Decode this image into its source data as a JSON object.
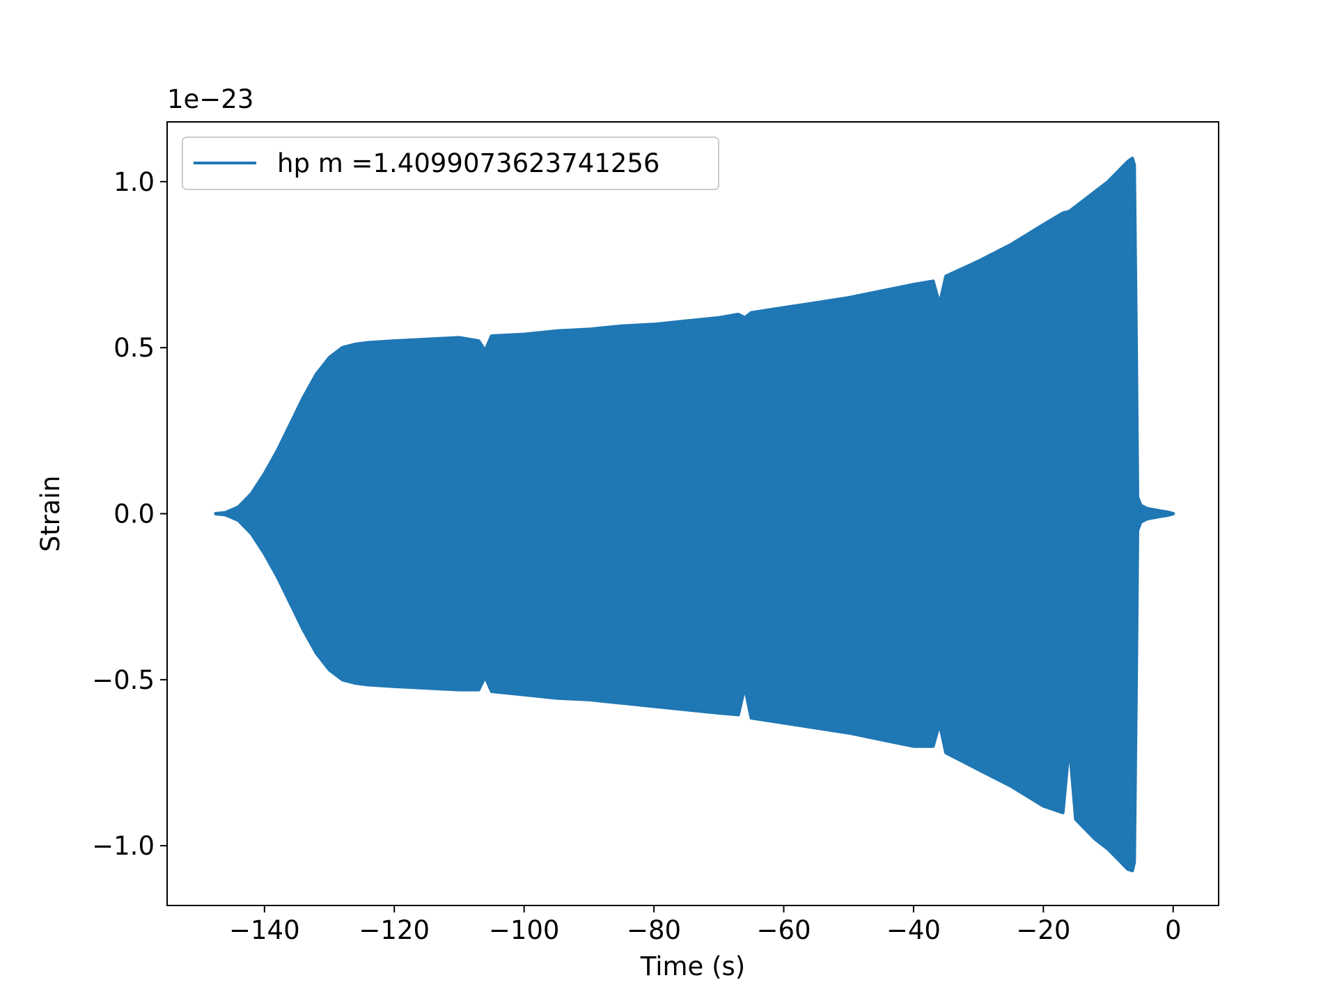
{
  "chart_data": {
    "type": "line",
    "xlabel": "Time (s)",
    "ylabel": "Strain",
    "offset_label": "1e−23",
    "xlim": [
      -155,
      7
    ],
    "ylim": [
      -1.18,
      1.18
    ],
    "x_ticks": [
      -140,
      -120,
      -100,
      -80,
      -60,
      -40,
      -20,
      0
    ],
    "x_tick_labels": [
      "−140",
      "−120",
      "−100",
      "−80",
      "−60",
      "−40",
      "−20",
      "0"
    ],
    "y_ticks": [
      -1.0,
      -0.5,
      0.0,
      0.5,
      1.0
    ],
    "y_tick_labels": [
      "−1.0",
      "−0.5",
      "0.0",
      "0.5",
      "1.0"
    ],
    "legend_position": "upper-left",
    "series": [
      {
        "name": "hp m =1.4099073623741256",
        "color": "#1f77b4",
        "envelope_x": [
          -147.5,
          -146,
          -144,
          -142,
          -140,
          -138,
          -136,
          -134,
          -132,
          -130,
          -128,
          -126,
          -124,
          -120,
          -115,
          -110,
          -107,
          -106,
          -105,
          -100,
          -95,
          -90,
          -85,
          -80,
          -75,
          -70,
          -67,
          -66,
          -65,
          -60,
          -55,
          -50,
          -45,
          -40,
          -37,
          -36,
          -35,
          -30,
          -25,
          -20,
          -17,
          -16,
          -15,
          -12,
          -10,
          -8,
          -7,
          -6.3,
          -6,
          -5.7,
          -5.5,
          -5,
          -4,
          -2,
          -1,
          0
        ],
        "envelope_upper": [
          0.0,
          0.003,
          0.02,
          0.06,
          0.12,
          0.19,
          0.27,
          0.35,
          0.42,
          0.47,
          0.5,
          0.51,
          0.515,
          0.52,
          0.525,
          0.53,
          0.52,
          0.49,
          0.535,
          0.54,
          0.55,
          0.555,
          0.565,
          0.57,
          0.58,
          0.59,
          0.6,
          0.59,
          0.605,
          0.62,
          0.635,
          0.65,
          0.67,
          0.69,
          0.7,
          0.63,
          0.715,
          0.76,
          0.81,
          0.87,
          0.905,
          0.91,
          0.925,
          0.97,
          1.0,
          1.04,
          1.06,
          1.07,
          1.05,
          0.5,
          0.05,
          0.025,
          0.015,
          0.008,
          0.005,
          0.0
        ],
        "envelope_lower": [
          0.0,
          -0.003,
          -0.02,
          -0.06,
          -0.12,
          -0.19,
          -0.27,
          -0.35,
          -0.42,
          -0.47,
          -0.5,
          -0.51,
          -0.515,
          -0.52,
          -0.525,
          -0.53,
          -0.53,
          -0.49,
          -0.535,
          -0.545,
          -0.555,
          -0.56,
          -0.57,
          -0.58,
          -0.59,
          -0.6,
          -0.605,
          -0.52,
          -0.615,
          -0.63,
          -0.645,
          -0.66,
          -0.68,
          -0.7,
          -0.7,
          -0.63,
          -0.72,
          -0.77,
          -0.82,
          -0.88,
          -0.9,
          -0.69,
          -0.92,
          -0.98,
          -1.01,
          -1.05,
          -1.07,
          -1.075,
          -1.05,
          -0.5,
          -0.05,
          -0.025,
          -0.015,
          -0.008,
          -0.005,
          0.0
        ]
      }
    ]
  }
}
